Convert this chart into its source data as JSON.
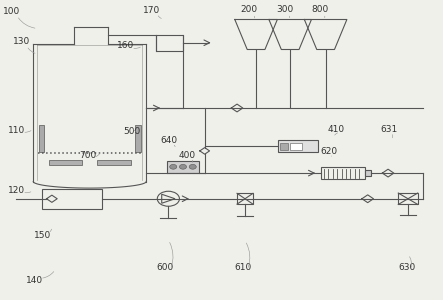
{
  "bg_color": "#f0f0eb",
  "line_color": "#555555",
  "text_color": "#333333",
  "lw": 0.8
}
